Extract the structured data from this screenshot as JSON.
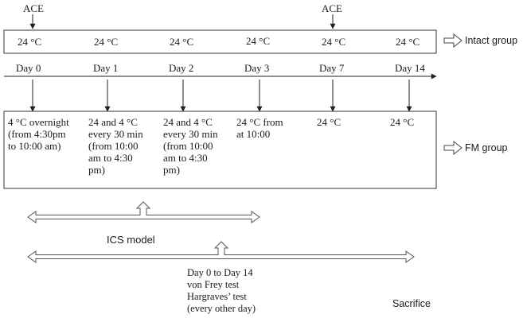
{
  "ace_labels": [
    "ACE",
    "ACE"
  ],
  "intact_temps": [
    "24 °C",
    "24 °C",
    "24 °C",
    "24 °C",
    "24 °C",
    "24 °C"
  ],
  "intact_group_label": "Intact group",
  "days": [
    "Day 0",
    "Day 1",
    "Day 2",
    "Day 3",
    "Day 7",
    "Day 14"
  ],
  "fm_cells": [
    "4 °C overnight\n(from 4:30pm\nto 10:00 am)",
    "24 and 4 °C\nevery 30 min\n(from 10:00\nam to 4:30\npm)",
    "24 and 4 °C\nevery 30 min\n(from 10:00\nam to 4:30\npm)",
    "24 °C from\nat 10:00",
    "24 °C",
    "24 °C"
  ],
  "fm_group_label": "FM group",
  "ics_label": "ICS model",
  "tests_text": "Day 0 to Day 14\nvon Frey test\nHargraves’ test\n(every other day)",
  "sacrifice_label": "Sacrifice"
}
